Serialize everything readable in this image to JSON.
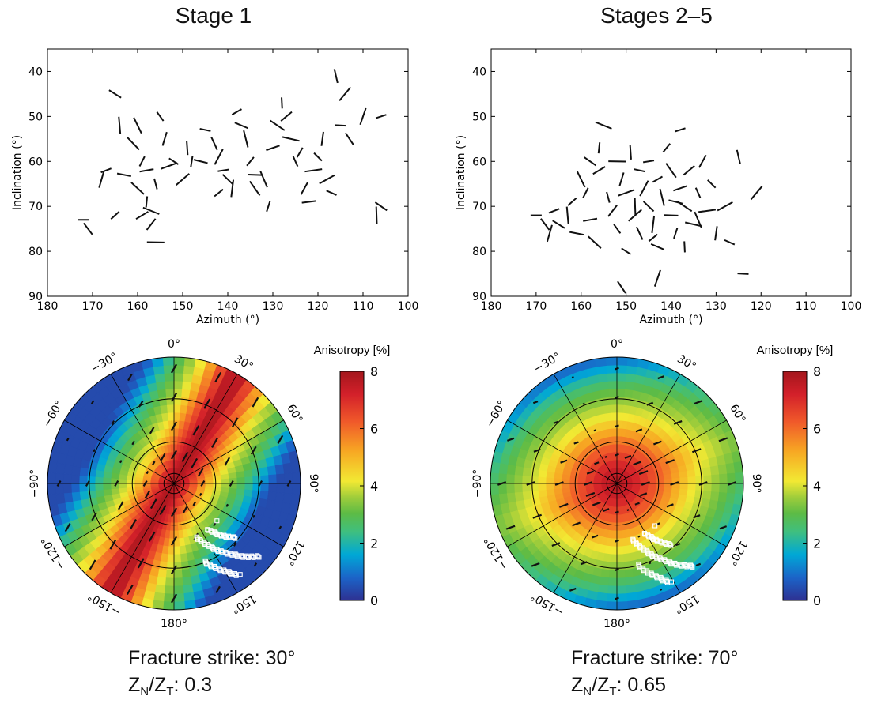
{
  "colors": {
    "map_stops": [
      "#2e3192",
      "#1b64c8",
      "#00a8d6",
      "#3fbf7f",
      "#5dbb45",
      "#9fcd3b",
      "#f2e933",
      "#f7a823",
      "#f0592a",
      "#d3202a",
      "#a4161c"
    ],
    "ink": "#111111",
    "grid": "#000000",
    "marker_stroke": "#ffffff"
  },
  "chart_data": [
    {
      "type": "scatter",
      "title": "Stage 1",
      "marker": "short-line-segment",
      "xlabel": "Azimuth (°)",
      "ylabel": "Inclination (°)",
      "xlim": [
        180,
        100
      ],
      "ylim": [
        90,
        35
      ],
      "xticks": [
        "180",
        "170",
        "160",
        "150",
        "140",
        "130",
        "120",
        "110",
        "100"
      ],
      "yticks": [
        "40",
        "50",
        "60",
        "70",
        "80",
        "90"
      ],
      "points": [
        {
          "x": 172,
          "y": 73
        },
        {
          "x": 171,
          "y": 75
        },
        {
          "x": 168,
          "y": 64
        },
        {
          "x": 167,
          "y": 62
        },
        {
          "x": 165,
          "y": 45
        },
        {
          "x": 164,
          "y": 52
        },
        {
          "x": 165,
          "y": 72
        },
        {
          "x": 163,
          "y": 63
        },
        {
          "x": 160,
          "y": 52
        },
        {
          "x": 159,
          "y": 60
        },
        {
          "x": 158,
          "y": 62
        },
        {
          "x": 160,
          "y": 66
        },
        {
          "x": 158,
          "y": 69
        },
        {
          "x": 159,
          "y": 72
        },
        {
          "x": 157,
          "y": 71
        },
        {
          "x": 156,
          "y": 65
        },
        {
          "x": 157,
          "y": 74
        },
        {
          "x": 156,
          "y": 78
        },
        {
          "x": 155,
          "y": 50
        },
        {
          "x": 154,
          "y": 55
        },
        {
          "x": 153,
          "y": 61
        },
        {
          "x": 152,
          "y": 60
        },
        {
          "x": 149,
          "y": 57
        },
        {
          "x": 150,
          "y": 64
        },
        {
          "x": 145,
          "y": 53
        },
        {
          "x": 143,
          "y": 56
        },
        {
          "x": 142,
          "y": 59
        },
        {
          "x": 141,
          "y": 62
        },
        {
          "x": 140,
          "y": 64
        },
        {
          "x": 139,
          "y": 66
        },
        {
          "x": 138,
          "y": 49
        },
        {
          "x": 137,
          "y": 52
        },
        {
          "x": 136,
          "y": 55
        },
        {
          "x": 135,
          "y": 60
        },
        {
          "x": 134,
          "y": 63
        },
        {
          "x": 134,
          "y": 66
        },
        {
          "x": 131,
          "y": 70
        },
        {
          "x": 130,
          "y": 57
        },
        {
          "x": 129,
          "y": 52
        },
        {
          "x": 128,
          "y": 47
        },
        {
          "x": 127,
          "y": 50
        },
        {
          "x": 126,
          "y": 55
        },
        {
          "x": 125,
          "y": 60
        },
        {
          "x": 123,
          "y": 66
        },
        {
          "x": 121,
          "y": 62
        },
        {
          "x": 120,
          "y": 59
        },
        {
          "x": 119,
          "y": 55
        },
        {
          "x": 118,
          "y": 64
        },
        {
          "x": 117,
          "y": 67
        },
        {
          "x": 116,
          "y": 41
        },
        {
          "x": 114,
          "y": 45
        },
        {
          "x": 115,
          "y": 52
        },
        {
          "x": 113,
          "y": 55
        },
        {
          "x": 110,
          "y": 50
        },
        {
          "x": 106,
          "y": 50
        },
        {
          "x": 106,
          "y": 70
        },
        {
          "x": 107,
          "y": 72
        },
        {
          "x": 142,
          "y": 67
        },
        {
          "x": 146,
          "y": 60
        },
        {
          "x": 132,
          "y": 64
        },
        {
          "x": 124,
          "y": 58
        },
        {
          "x": 122,
          "y": 69
        },
        {
          "x": 161,
          "y": 56
        },
        {
          "x": 148,
          "y": 60
        }
      ]
    },
    {
      "type": "scatter",
      "title": "Stages 2–5",
      "marker": "short-line-segment",
      "xlabel": "Azimuth (°)",
      "ylabel": "Inclination (°)",
      "xlim": [
        180,
        100
      ],
      "ylim": [
        90,
        35
      ],
      "xticks": [
        "180",
        "170",
        "160",
        "150",
        "140",
        "130",
        "120",
        "110",
        "100"
      ],
      "yticks": [
        "40",
        "50",
        "60",
        "70",
        "80",
        "90"
      ],
      "points": [
        {
          "x": 170,
          "y": 72
        },
        {
          "x": 168,
          "y": 74
        },
        {
          "x": 167,
          "y": 76
        },
        {
          "x": 166,
          "y": 71
        },
        {
          "x": 165,
          "y": 74
        },
        {
          "x": 163,
          "y": 72
        },
        {
          "x": 162,
          "y": 69
        },
        {
          "x": 161,
          "y": 76
        },
        {
          "x": 160,
          "y": 64
        },
        {
          "x": 159,
          "y": 67
        },
        {
          "x": 158,
          "y": 73
        },
        {
          "x": 157,
          "y": 78
        },
        {
          "x": 156,
          "y": 57
        },
        {
          "x": 156,
          "y": 62
        },
        {
          "x": 155,
          "y": 52
        },
        {
          "x": 154,
          "y": 68
        },
        {
          "x": 153,
          "y": 71
        },
        {
          "x": 152,
          "y": 60
        },
        {
          "x": 152,
          "y": 75
        },
        {
          "x": 151,
          "y": 64
        },
        {
          "x": 150,
          "y": 67
        },
        {
          "x": 150,
          "y": 80
        },
        {
          "x": 149,
          "y": 58
        },
        {
          "x": 148,
          "y": 72
        },
        {
          "x": 147,
          "y": 62
        },
        {
          "x": 147,
          "y": 76
        },
        {
          "x": 146,
          "y": 66
        },
        {
          "x": 145,
          "y": 60
        },
        {
          "x": 145,
          "y": 70
        },
        {
          "x": 144,
          "y": 74
        },
        {
          "x": 143,
          "y": 64
        },
        {
          "x": 143,
          "y": 79
        },
        {
          "x": 142,
          "y": 68
        },
        {
          "x": 141,
          "y": 57
        },
        {
          "x": 140,
          "y": 72
        },
        {
          "x": 140,
          "y": 62
        },
        {
          "x": 139,
          "y": 76
        },
        {
          "x": 138,
          "y": 66
        },
        {
          "x": 137,
          "y": 70
        },
        {
          "x": 137,
          "y": 79
        },
        {
          "x": 136,
          "y": 62
        },
        {
          "x": 135,
          "y": 74
        },
        {
          "x": 134,
          "y": 67
        },
        {
          "x": 133,
          "y": 60
        },
        {
          "x": 132,
          "y": 71
        },
        {
          "x": 131,
          "y": 65
        },
        {
          "x": 130,
          "y": 76
        },
        {
          "x": 128,
          "y": 70
        },
        {
          "x": 127,
          "y": 78
        },
        {
          "x": 125,
          "y": 59
        },
        {
          "x": 121,
          "y": 67
        },
        {
          "x": 124,
          "y": 85
        },
        {
          "x": 151,
          "y": 88
        },
        {
          "x": 143,
          "y": 86
        },
        {
          "x": 138,
          "y": 53
        },
        {
          "x": 158,
          "y": 60
        },
        {
          "x": 148,
          "y": 70
        },
        {
          "x": 144,
          "y": 77
        },
        {
          "x": 139,
          "y": 69
        },
        {
          "x": 134,
          "y": 73
        }
      ]
    },
    {
      "type": "heatmap",
      "projection": "polar",
      "colorbar_label": "Anisotropy [%]",
      "colorbar_range": [
        0,
        8
      ],
      "colorbar_ticks": [
        "8",
        "6",
        "4",
        "2",
        "0"
      ],
      "angle_labels": [
        "0°",
        "30°",
        "60°",
        "90°",
        "120°",
        "150°",
        "180°",
        "−150°",
        "−120°",
        "−90°",
        "−60°",
        "−30°"
      ],
      "angle_label_degrees": [
        0,
        30,
        60,
        90,
        120,
        150,
        180,
        -150,
        -120,
        -90,
        -60,
        -30
      ],
      "fracture_strike_deg": 30,
      "zn_zt": 0.3,
      "overlay": "white open squares cluster near azimuth 135–160°",
      "caption_line1": "Fracture strike: 30°",
      "caption_prefix": "Z",
      "caption_sub1": "N",
      "caption_slash": "/Z",
      "caption_sub2": "T",
      "caption_value": ": 0.3"
    },
    {
      "type": "heatmap",
      "projection": "polar",
      "colorbar_label": "Anisotropy [%]",
      "colorbar_range": [
        0,
        8
      ],
      "colorbar_ticks": [
        "8",
        "6",
        "4",
        "2",
        "0"
      ],
      "angle_labels": [
        "0°",
        "30°",
        "60°",
        "90°",
        "120°",
        "150°",
        "180°",
        "−150°",
        "−120°",
        "−90°",
        "−60°",
        "−30°"
      ],
      "angle_label_degrees": [
        0,
        30,
        60,
        90,
        120,
        150,
        180,
        -150,
        -120,
        -90,
        -60,
        -30
      ],
      "fracture_strike_deg": 70,
      "zn_zt": 0.65,
      "overlay": "white open squares cluster near azimuth 140–165°",
      "caption_line1": "Fracture strike: 70°",
      "caption_prefix": "Z",
      "caption_sub1": "N",
      "caption_slash": "/Z",
      "caption_sub2": "T",
      "caption_value": ": 0.65"
    }
  ]
}
